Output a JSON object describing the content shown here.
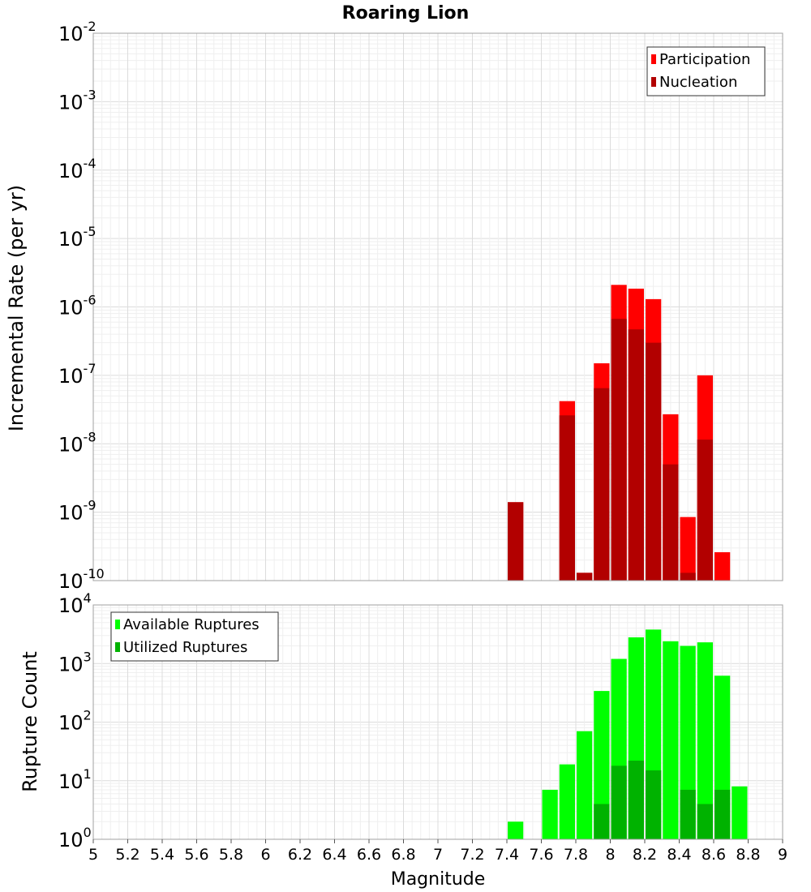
{
  "chart_data": [
    {
      "type": "bar",
      "title": "Roaring Lion",
      "xlabel": "Magnitude",
      "ylabel": "Incremental Rate (per yr)",
      "xlim": [
        5,
        9
      ],
      "ylim_exponents": [
        -10,
        -2
      ],
      "yscale": "log",
      "ytick_base": "10",
      "grid": true,
      "legend_position": "top-right",
      "bin_width": 0.1,
      "x": [
        7.45,
        7.55,
        7.65,
        7.75,
        7.85,
        7.95,
        8.05,
        8.15,
        8.25,
        8.35,
        8.45,
        8.55,
        8.65
      ],
      "series": [
        {
          "name": "Participation",
          "color": "#ff0000",
          "values": [
            1.4e-09,
            0,
            0,
            4.2e-08,
            1.3e-10,
            1.5e-07,
            2.1e-06,
            1.85e-06,
            1.3e-06,
            2.7e-08,
            8.5e-10,
            1e-07,
            2.6e-10
          ]
        },
        {
          "name": "Nucleation",
          "color": "#b20000",
          "values": [
            1.4e-09,
            0,
            0,
            2.6e-08,
            1.3e-10,
            6.5e-08,
            6.7e-07,
            4.7e-07,
            3e-07,
            5e-09,
            1.3e-10,
            1.15e-08,
            0
          ]
        }
      ]
    },
    {
      "type": "bar",
      "xlabel": "Magnitude",
      "ylabel": "Rupture Count",
      "xlim": [
        5,
        9
      ],
      "xticks": [
        "5",
        "5.2",
        "5.4",
        "5.6",
        "5.8",
        "6",
        "6.2",
        "6.4",
        "6.6",
        "6.8",
        "7",
        "7.2",
        "7.4",
        "7.6",
        "7.8",
        "8",
        "8.2",
        "8.4",
        "8.6",
        "8.8",
        "9"
      ],
      "ylim_exponents": [
        0,
        4
      ],
      "yscale": "log",
      "ytick_base": "10",
      "grid": true,
      "legend_position": "top-left",
      "bin_width": 0.1,
      "x": [
        7.45,
        7.55,
        7.65,
        7.75,
        7.85,
        7.95,
        8.05,
        8.15,
        8.25,
        8.35,
        8.45,
        8.55,
        8.65,
        8.75
      ],
      "series": [
        {
          "name": "Available Ruptures",
          "color": "#00ff00",
          "values": [
            2,
            1,
            7,
            19,
            70,
            340,
            1200,
            2800,
            3800,
            2400,
            2000,
            2300,
            620,
            8
          ]
        },
        {
          "name": "Utilized Ruptures",
          "color": "#00b200",
          "values": [
            1,
            0,
            0,
            1,
            1,
            4,
            18,
            22,
            15,
            1,
            7,
            4,
            7,
            0
          ]
        }
      ]
    }
  ]
}
